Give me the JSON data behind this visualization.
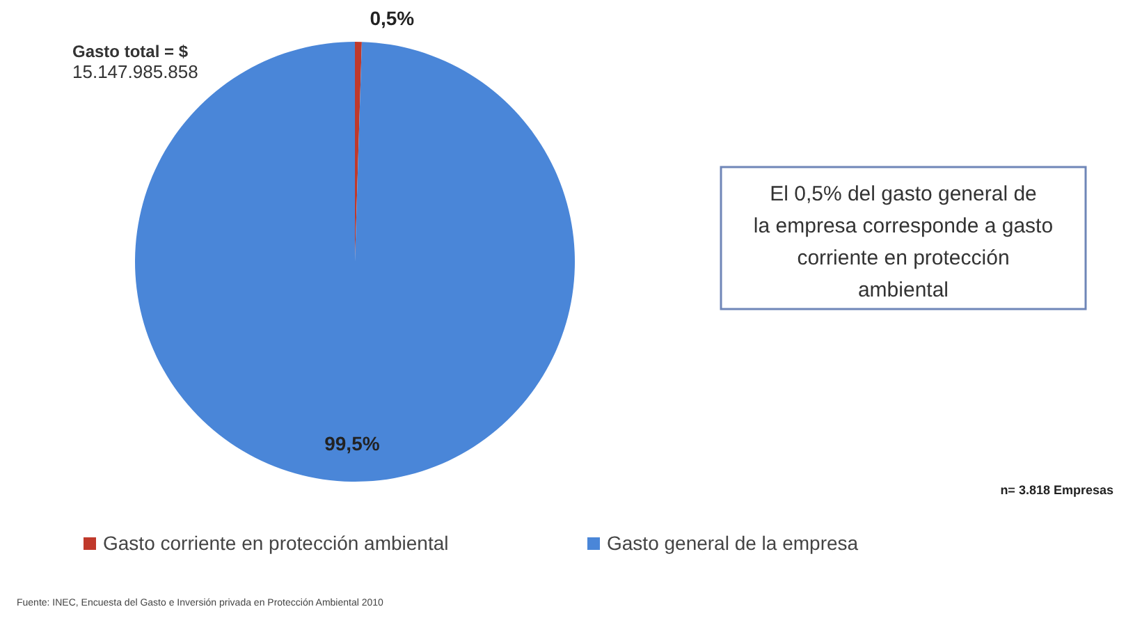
{
  "chart_data": {
    "type": "pie",
    "categories": [
      "Gasto corriente en protección ambiental",
      "Gasto general de la empresa"
    ],
    "values": [
      0.5,
      99.5
    ],
    "colors": [
      "#c0392b",
      "#4a86d8"
    ],
    "value_labels": [
      "0,5%",
      "99,5%"
    ],
    "legend": "bottom",
    "annotations": [
      "Gasto total = $ 15.147.985.858",
      "El  0,5% del gasto  general de la empresa corresponde a gasto corriente en protección ambiental",
      "n= 3.818 Empresas",
      "Fuente: INEC, Encuesta del Gasto e Inversión privada en Protección Ambiental 2010"
    ]
  }
}
